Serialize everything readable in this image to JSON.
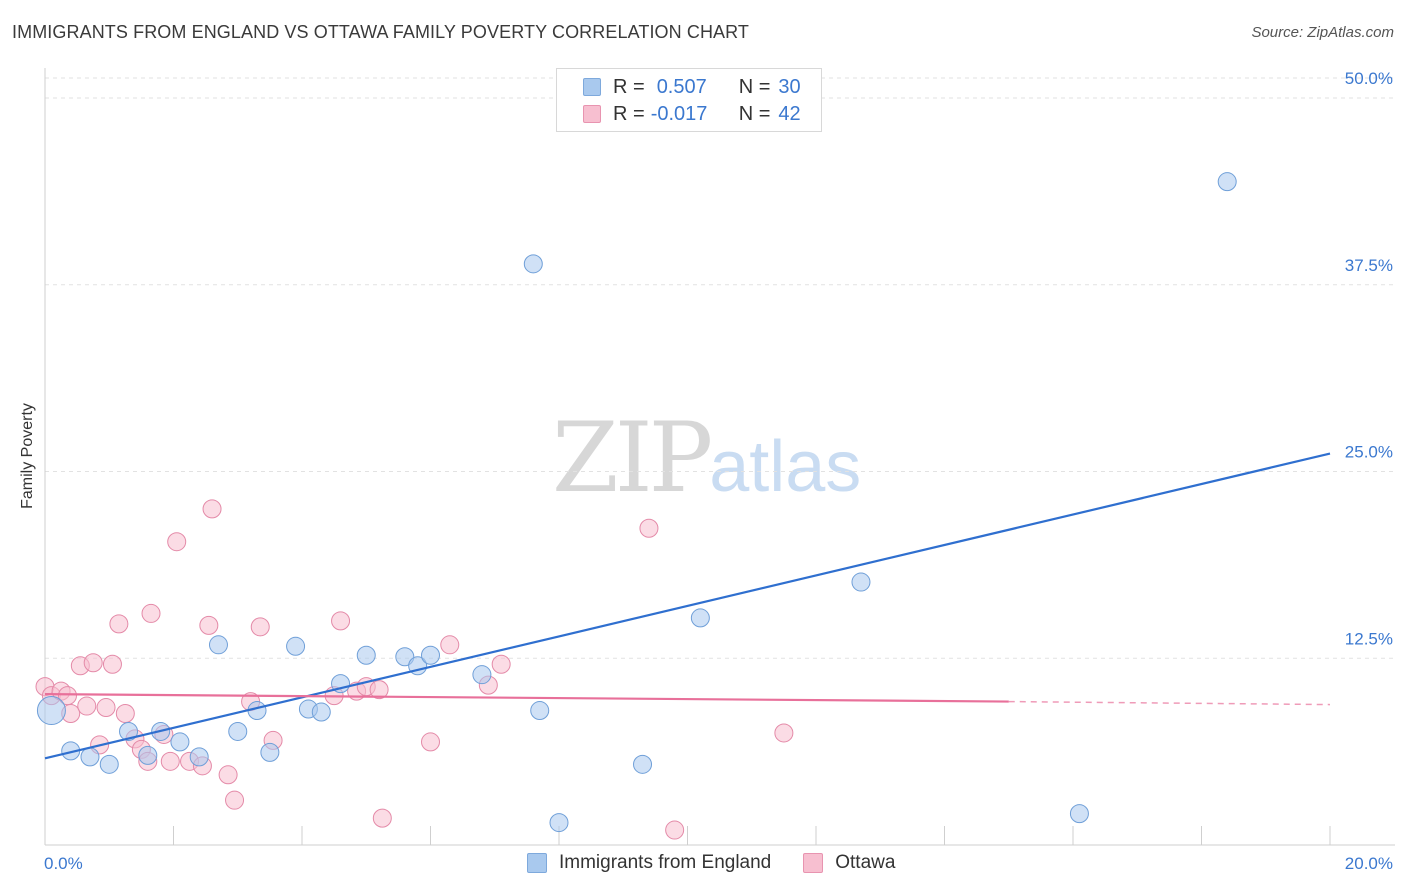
{
  "header": {
    "title": "IMMIGRANTS FROM ENGLAND VS OTTAWA FAMILY POVERTY CORRELATION CHART",
    "source": "Source: ZipAtlas.com"
  },
  "watermark": {
    "zip": "ZIP",
    "atlas": "atlas"
  },
  "legend": {
    "rows": [
      {
        "r_label": "R =",
        "r_value": "0.507",
        "n_label": "N =",
        "n_value": "30",
        "color": "#a9c9ee",
        "border": "#7ea9dc"
      },
      {
        "r_label": "R =",
        "r_value": "-0.017",
        "n_label": "N =",
        "n_value": "42",
        "color": "#f7bfd0",
        "border": "#e894b0"
      }
    ]
  },
  "chart_data": {
    "type": "scatter",
    "title": "IMMIGRANTS FROM ENGLAND VS OTTAWA FAMILY POVERTY CORRELATION CHART",
    "xlabel": "",
    "ylabel": "Family Poverty",
    "xlim": [
      0,
      20
    ],
    "ylim": [
      0,
      50
    ],
    "x_tick_labels": [
      "0.0%",
      "20.0%"
    ],
    "y_ticks": [
      12.5,
      25.0,
      37.5,
      50.0
    ],
    "y_tick_labels": [
      "12.5%",
      "25.0%",
      "37.5%",
      "50.0%"
    ],
    "grid": true,
    "legend_position": "top-center",
    "series": [
      {
        "name": "Immigrants from England",
        "color": "#a9c9ee",
        "edge": "#6f9fd8",
        "line_color": "#2f6fcf",
        "trend": {
          "x0": 0,
          "y0": 5.8,
          "x1": 20,
          "y1": 26.2
        },
        "points": [
          [
            0.1,
            9.0,
            14
          ],
          [
            0.4,
            6.3,
            9
          ],
          [
            0.7,
            5.9,
            9
          ],
          [
            1.0,
            5.4,
            9
          ],
          [
            1.3,
            7.6,
            9
          ],
          [
            1.6,
            6.0,
            9
          ],
          [
            1.8,
            7.6,
            9
          ],
          [
            2.1,
            6.9,
            9
          ],
          [
            2.4,
            5.9,
            9
          ],
          [
            2.7,
            13.4,
            9
          ],
          [
            3.0,
            7.6,
            9
          ],
          [
            3.3,
            9.0,
            9
          ],
          [
            3.5,
            6.2,
            9
          ],
          [
            3.9,
            13.3,
            9
          ],
          [
            4.1,
            9.1,
            9
          ],
          [
            4.3,
            8.9,
            9
          ],
          [
            4.6,
            10.8,
            9
          ],
          [
            5.0,
            12.7,
            9
          ],
          [
            5.6,
            12.6,
            9
          ],
          [
            5.8,
            12.0,
            9
          ],
          [
            6.0,
            12.7,
            9
          ],
          [
            6.8,
            11.4,
            9
          ],
          [
            7.6,
            38.9,
            9
          ],
          [
            7.7,
            9.0,
            9
          ],
          [
            8.0,
            1.5,
            9
          ],
          [
            9.3,
            5.4,
            9
          ],
          [
            10.2,
            15.2,
            9
          ],
          [
            12.7,
            17.6,
            9
          ],
          [
            16.1,
            2.1,
            9
          ],
          [
            18.4,
            44.4,
            9
          ]
        ]
      },
      {
        "name": "Ottawa",
        "color": "#f7bfd0",
        "edge": "#e48aa8",
        "line_color": "#e8709a",
        "trend": {
          "x0": 0,
          "y0": 10.1,
          "x1": 15.0,
          "y1": 9.6,
          "dash_x1": 20,
          "dash_y1": 9.4
        },
        "points": [
          [
            0.0,
            10.6,
            9
          ],
          [
            0.1,
            10.0,
            9
          ],
          [
            0.25,
            10.3,
            9
          ],
          [
            0.35,
            10.0,
            9
          ],
          [
            0.4,
            8.8,
            9
          ],
          [
            0.55,
            12.0,
            9
          ],
          [
            0.65,
            9.3,
            9
          ],
          [
            0.75,
            12.2,
            9
          ],
          [
            0.85,
            6.7,
            9
          ],
          [
            0.95,
            9.2,
            9
          ],
          [
            1.05,
            12.1,
            9
          ],
          [
            1.15,
            14.8,
            9
          ],
          [
            1.25,
            8.8,
            9
          ],
          [
            1.4,
            7.1,
            9
          ],
          [
            1.5,
            6.4,
            9
          ],
          [
            1.6,
            5.6,
            9
          ],
          [
            1.65,
            15.5,
            9
          ],
          [
            1.85,
            7.4,
            9
          ],
          [
            1.95,
            5.6,
            9
          ],
          [
            2.05,
            20.3,
            9
          ],
          [
            2.25,
            5.6,
            9
          ],
          [
            2.45,
            5.3,
            9
          ],
          [
            2.55,
            14.7,
            9
          ],
          [
            2.6,
            22.5,
            9
          ],
          [
            2.85,
            4.7,
            9
          ],
          [
            2.95,
            3.0,
            9
          ],
          [
            3.2,
            9.6,
            9
          ],
          [
            3.35,
            14.6,
            9
          ],
          [
            3.55,
            7.0,
            9
          ],
          [
            4.5,
            10.0,
            9
          ],
          [
            4.6,
            15.0,
            9
          ],
          [
            4.85,
            10.3,
            9
          ],
          [
            5.0,
            10.6,
            9
          ],
          [
            5.2,
            10.4,
            9
          ],
          [
            5.25,
            1.8,
            9
          ],
          [
            6.0,
            6.9,
            9
          ],
          [
            6.3,
            13.4,
            9
          ],
          [
            6.9,
            10.7,
            9
          ],
          [
            7.1,
            12.1,
            9
          ],
          [
            9.4,
            21.2,
            9
          ],
          [
            9.8,
            1.0,
            9
          ],
          [
            11.5,
            7.5,
            9
          ]
        ]
      }
    ]
  },
  "bottom_legend": {
    "items": [
      {
        "label": "Immigrants from England",
        "color": "#a9c9ee",
        "border": "#7ea9dc"
      },
      {
        "label": "Ottawa",
        "color": "#f7bfd0",
        "border": "#e894b0"
      }
    ]
  }
}
